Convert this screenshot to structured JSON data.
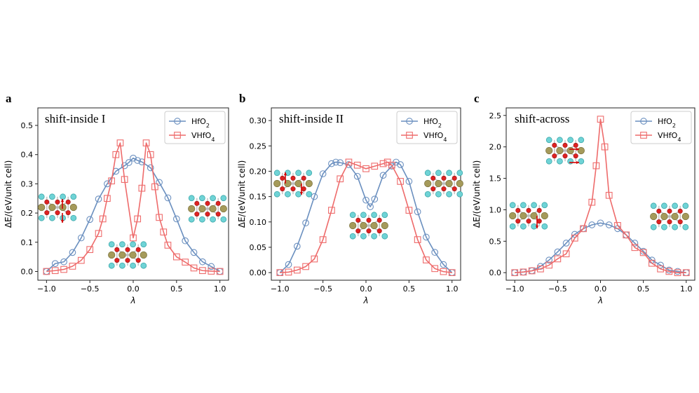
{
  "colors": {
    "hfo2": "#6a8fbf",
    "vhfo4": "#ee6b6b",
    "hf": "#a59a5a",
    "o": "#dd2222",
    "li": "#6fd3d6"
  },
  "legend_sub": "2",
  "legend_sub2": "4",
  "chart_data": [
    {
      "type": "line",
      "panel": "a",
      "title": "shift-inside I",
      "xlabel": "λ",
      "ylabel": "ΔE/(eV/unit cell)",
      "xlim": [
        -1.1,
        1.1
      ],
      "ylim": [
        -0.03,
        0.56
      ],
      "xticks": [
        -1.0,
        -0.5,
        0.0,
        0.5,
        1.0
      ],
      "xtick_labels": [
        "−1.0",
        "−0.5",
        "0.0",
        "0.5",
        "1.0"
      ],
      "yticks": [
        0.0,
        0.1,
        0.2,
        0.3,
        0.4,
        0.5
      ],
      "ytick_labels": [
        "0.0",
        "0.1",
        "0.2",
        "0.3",
        "0.4",
        "0.5"
      ],
      "legend_position": "top-right",
      "series": [
        {
          "name": "HfO",
          "marker": "circle",
          "x": [
            -1.0,
            -0.9,
            -0.8,
            -0.7,
            -0.6,
            -0.5,
            -0.4,
            -0.3,
            -0.2,
            -0.1,
            -0.05,
            0.0,
            0.05,
            0.1,
            0.2,
            0.3,
            0.4,
            0.5,
            0.6,
            0.7,
            0.8,
            0.9,
            1.0
          ],
          "y": [
            0.0,
            0.027,
            0.033,
            0.065,
            0.115,
            0.178,
            0.248,
            0.3,
            0.343,
            0.362,
            0.373,
            0.388,
            0.38,
            0.375,
            0.355,
            0.305,
            0.252,
            0.18,
            0.105,
            0.065,
            0.033,
            0.017,
            0.0
          ]
        },
        {
          "name": "VHfO",
          "marker": "square",
          "x": [
            -1.0,
            -0.9,
            -0.8,
            -0.7,
            -0.6,
            -0.5,
            -0.4,
            -0.35,
            -0.3,
            -0.25,
            -0.2,
            -0.15,
            -0.1,
            0.0,
            0.05,
            0.1,
            0.15,
            0.2,
            0.25,
            0.3,
            0.35,
            0.4,
            0.5,
            0.6,
            0.7,
            0.8,
            0.9,
            1.0
          ],
          "y": [
            0.0,
            0.003,
            0.007,
            0.018,
            0.038,
            0.075,
            0.13,
            0.18,
            0.25,
            0.31,
            0.4,
            0.44,
            0.315,
            0.115,
            0.18,
            0.285,
            0.44,
            0.4,
            0.29,
            0.185,
            0.135,
            0.09,
            0.05,
            0.032,
            0.012,
            0.003,
            0.001,
            0.0
          ]
        }
      ]
    },
    {
      "type": "line",
      "panel": "b",
      "title": "shift-inside II",
      "xlabel": "λ",
      "ylabel": "ΔE/(eV/unit cell)",
      "xlim": [
        -1.1,
        1.1
      ],
      "ylim": [
        -0.015,
        0.325
      ],
      "xticks": [
        -1.0,
        -0.5,
        0.0,
        0.5,
        1.0
      ],
      "xtick_labels": [
        "−1.0",
        "−0.5",
        "0.0",
        "0.5",
        "1.0"
      ],
      "yticks": [
        0.0,
        0.05,
        0.1,
        0.15,
        0.2,
        0.25,
        0.3
      ],
      "ytick_labels": [
        "0.00",
        "0.05",
        "0.10",
        "0.15",
        "0.20",
        "0.25",
        "0.30"
      ],
      "legend_position": "top-right",
      "series": [
        {
          "name": "HfO",
          "marker": "circle",
          "x": [
            -1.0,
            -0.9,
            -0.8,
            -0.7,
            -0.6,
            -0.5,
            -0.4,
            -0.35,
            -0.3,
            -0.2,
            -0.1,
            0.0,
            0.05,
            0.1,
            0.2,
            0.3,
            0.35,
            0.4,
            0.5,
            0.6,
            0.7,
            0.8,
            0.9,
            1.0
          ],
          "y": [
            0.0,
            0.016,
            0.052,
            0.098,
            0.15,
            0.195,
            0.215,
            0.218,
            0.217,
            0.213,
            0.19,
            0.143,
            0.13,
            0.145,
            0.192,
            0.21,
            0.218,
            0.213,
            0.18,
            0.12,
            0.07,
            0.04,
            0.016,
            0.0
          ]
        },
        {
          "name": "VHfO",
          "marker": "square",
          "x": [
            -1.0,
            -0.9,
            -0.8,
            -0.7,
            -0.6,
            -0.5,
            -0.4,
            -0.3,
            -0.2,
            -0.1,
            0.0,
            0.1,
            0.2,
            0.25,
            0.3,
            0.4,
            0.5,
            0.6,
            0.7,
            0.8,
            0.9,
            1.0
          ],
          "y": [
            0.0,
            0.001,
            0.005,
            0.012,
            0.027,
            0.065,
            0.123,
            0.185,
            0.218,
            0.212,
            0.205,
            0.21,
            0.215,
            0.218,
            0.212,
            0.18,
            0.123,
            0.065,
            0.025,
            0.008,
            0.002,
            0.0
          ]
        }
      ]
    },
    {
      "type": "line",
      "panel": "c",
      "title": "shift-across",
      "xlabel": "λ",
      "ylabel": "ΔE/(eV/unit cell)",
      "xlim": [
        -1.1,
        1.1
      ],
      "ylim": [
        -0.12,
        2.62
      ],
      "xticks": [
        -1.0,
        -0.5,
        0.0,
        0.5,
        1.0
      ],
      "xtick_labels": [
        "−1.0",
        "−0.5",
        "0.0",
        "0.5",
        "1.0"
      ],
      "yticks": [
        0.0,
        0.5,
        1.0,
        1.5,
        2.0,
        2.5
      ],
      "ytick_labels": [
        "0.0",
        "0.5",
        "1.0",
        "1.5",
        "2.0",
        "2.5"
      ],
      "legend_position": "top-right",
      "series": [
        {
          "name": "HfO",
          "marker": "circle",
          "x": [
            -1.0,
            -0.9,
            -0.8,
            -0.7,
            -0.6,
            -0.5,
            -0.4,
            -0.3,
            -0.2,
            -0.1,
            0.0,
            0.1,
            0.2,
            0.3,
            0.4,
            0.5,
            0.6,
            0.7,
            0.8,
            0.9,
            1.0
          ],
          "y": [
            0.0,
            0.01,
            0.03,
            0.1,
            0.2,
            0.33,
            0.47,
            0.61,
            0.7,
            0.76,
            0.79,
            0.76,
            0.7,
            0.6,
            0.47,
            0.34,
            0.2,
            0.12,
            0.04,
            0.02,
            0.0
          ]
        },
        {
          "name": "VHfO",
          "marker": "square",
          "x": [
            -1.0,
            -0.9,
            -0.8,
            -0.7,
            -0.6,
            -0.5,
            -0.4,
            -0.3,
            -0.2,
            -0.1,
            -0.05,
            0.0,
            0.05,
            0.1,
            0.2,
            0.3,
            0.4,
            0.5,
            0.6,
            0.7,
            0.8,
            0.9,
            1.0
          ],
          "y": [
            0.0,
            0.01,
            0.03,
            0.06,
            0.12,
            0.22,
            0.3,
            0.55,
            0.7,
            1.12,
            1.7,
            2.44,
            2.0,
            1.23,
            0.75,
            0.6,
            0.4,
            0.32,
            0.15,
            0.06,
            0.02,
            0.0,
            0.0
          ]
        }
      ]
    }
  ]
}
